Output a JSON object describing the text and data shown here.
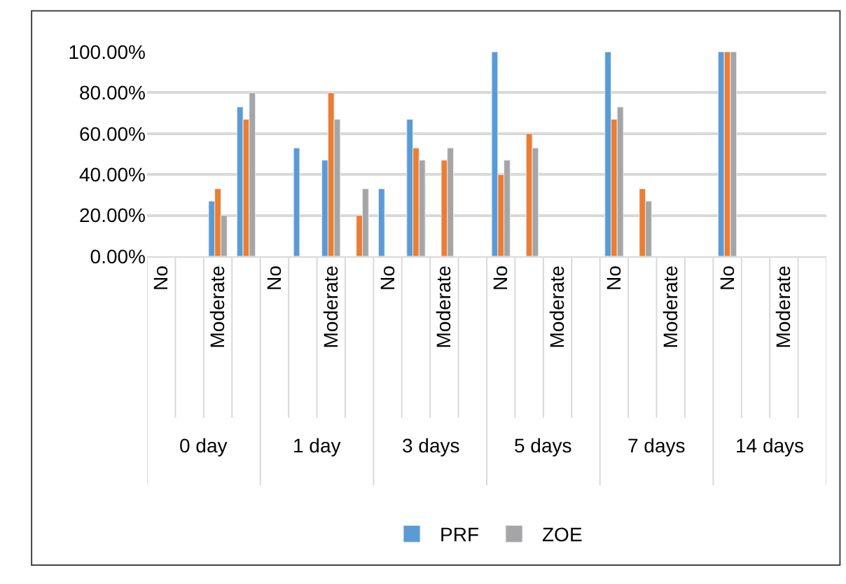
{
  "chart_data": {
    "type": "bar",
    "categories": [
      "No",
      null,
      "Moderate",
      null,
      "No",
      null,
      "Moderate",
      null,
      "No",
      null,
      "Moderate",
      null,
      "No",
      null,
      "Moderate",
      null,
      "No",
      null,
      "Moderate",
      null,
      "No",
      null,
      "Moderate",
      null
    ],
    "annotations": [
      "0 day",
      "1 day",
      "3 days",
      "5 days",
      "7 days",
      "14 days"
    ],
    "series": [
      {
        "name": "PRF",
        "color": "#5b9bd5",
        "values": [
          null,
          null,
          27,
          73,
          null,
          53,
          47,
          null,
          33,
          67,
          null,
          null,
          100,
          null,
          null,
          null,
          100,
          null,
          null,
          null,
          100,
          null,
          null,
          null
        ]
      },
      {
        "color": "#ed7d31",
        "values": [
          null,
          null,
          33,
          67,
          null,
          null,
          80,
          20,
          null,
          53,
          47,
          null,
          40,
          60,
          null,
          null,
          67,
          33,
          null,
          null,
          100,
          null,
          null,
          null
        ]
      },
      {
        "name": "ZOE",
        "color": "#a5a5a5",
        "values": [
          null,
          null,
          20,
          80,
          null,
          null,
          67,
          33,
          null,
          47,
          53,
          null,
          47,
          53,
          null,
          null,
          73,
          27,
          null,
          null,
          100,
          null,
          null,
          null
        ]
      }
    ],
    "ylim": [
      0,
      100
    ],
    "yticks": [
      {
        "value": 0,
        "label": "0.00%"
      },
      {
        "value": 20,
        "label": "20.00%"
      },
      {
        "value": 40,
        "label": "40.00%"
      },
      {
        "value": 60,
        "label": "60.00%"
      },
      {
        "value": 80,
        "label": "80.00%"
      },
      {
        "value": 100,
        "label": "100.00%"
      }
    ],
    "grid": "y",
    "legend": "bottom"
  }
}
